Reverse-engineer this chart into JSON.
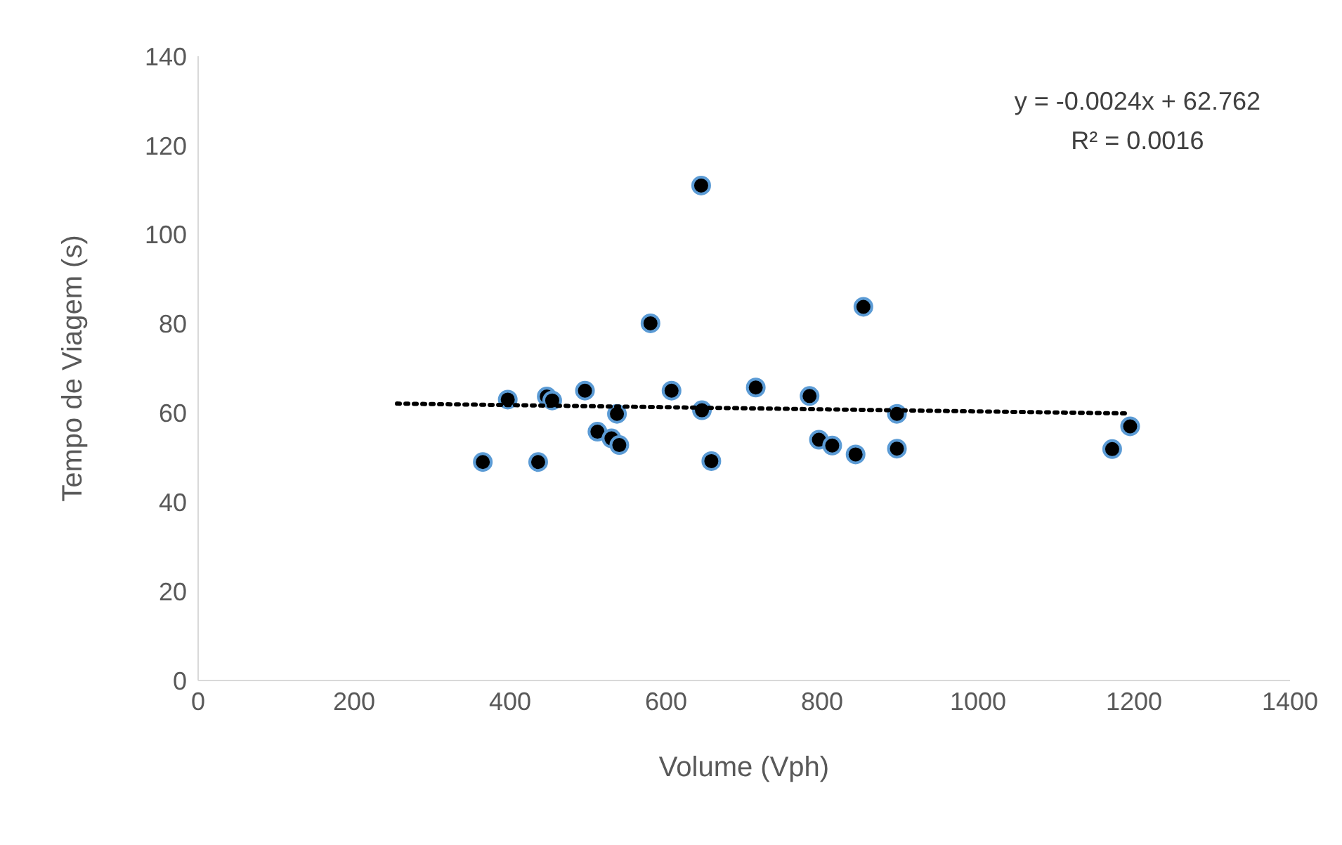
{
  "chart_data": {
    "type": "scatter",
    "xlabel": "Volume (Vph)",
    "ylabel": "Tempo de Viagem (s)",
    "xlim": [
      0,
      1400
    ],
    "xticks": [
      0,
      200,
      400,
      600,
      800,
      1000,
      1200,
      1400
    ],
    "ylim": [
      0,
      140
    ],
    "yticks": [
      0,
      20,
      40,
      60,
      80,
      100,
      120,
      140
    ],
    "grid": false,
    "annotations": [
      "y = -0.0024x + 62.762",
      "R² = 0.0016"
    ],
    "series": [
      {
        "marker": "circle",
        "color": "#000000",
        "x": [
          365,
          397,
          436,
          447,
          454,
          496,
          512,
          530,
          540,
          537,
          580,
          607,
          645,
          646,
          658,
          715,
          784,
          796,
          813,
          843,
          853,
          896,
          896,
          1172,
          1195
        ],
        "values": [
          49,
          63,
          49,
          63.7,
          62.8,
          65,
          55.8,
          54.3,
          52.8,
          59.8,
          80.1,
          65,
          111,
          60.6,
          49.2,
          65.7,
          63.8,
          54,
          52.7,
          50.7,
          83.8,
          59.8,
          52,
          51.9,
          57
        ]
      },
      {
        "type": "line",
        "marker": "none",
        "line_style": "dotted",
        "color": "#000000",
        "x": [
          255,
          1190
        ],
        "values": [
          62.1,
          59.9
        ]
      }
    ]
  }
}
